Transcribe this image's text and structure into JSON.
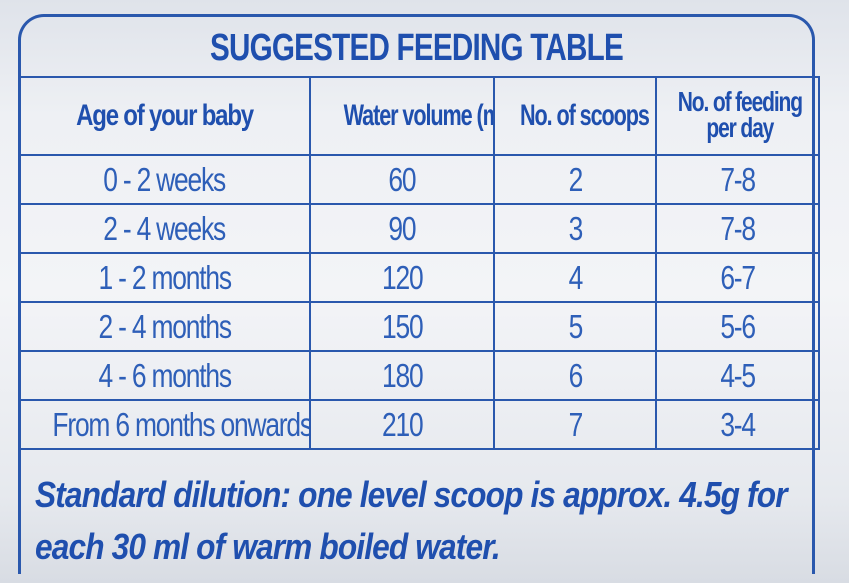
{
  "title": "SUGGESTED FEEDING TABLE",
  "table": {
    "headers": [
      "Age of your baby",
      "Water volume (ml)",
      "No. of scoops",
      "No. of feeding per day"
    ],
    "header_last_lines": [
      "No. of feeding",
      "per day"
    ],
    "rows": [
      [
        "0 - 2 weeks",
        "60",
        "2",
        "7-8"
      ],
      [
        "2 - 4 weeks",
        "90",
        "3",
        "7-8"
      ],
      [
        "1 - 2 months",
        "120",
        "4",
        "6-7"
      ],
      [
        "2 - 4 months",
        "150",
        "5",
        "5-6"
      ],
      [
        "4 - 6 months",
        "180",
        "6",
        "4-5"
      ],
      [
        "From 6 months onwards",
        "210",
        "7",
        "3-4"
      ]
    ]
  },
  "footer": {
    "line1": "Standard dilution: one level scoop is approx. 4.5g for",
    "line2": "each 30 ml of warm boiled water."
  },
  "colors": {
    "accent": "#2a58ad",
    "text": "#2e5fb8"
  }
}
